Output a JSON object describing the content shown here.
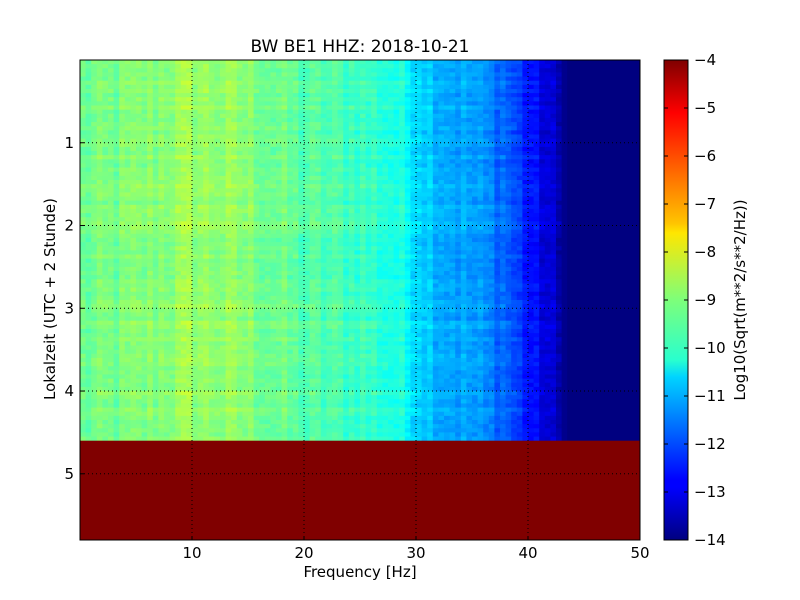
{
  "chart_data": {
    "type": "heatmap",
    "title": "BW BE1 HHZ: 2018-10-21",
    "xlabel": "Frequency [Hz]",
    "ylabel": "Lokalzeit (UTC + 2 Stunde)",
    "xlim": [
      0,
      50
    ],
    "ylim": [
      5.8,
      0
    ],
    "x_ticks": [
      10,
      20,
      30,
      40,
      50
    ],
    "y_ticks": [
      1,
      2,
      3,
      4,
      5
    ],
    "grid": true,
    "colormap": "jet",
    "colorbar": {
      "label": "Log10(Sqrt(m**2/s**2/Hz))",
      "range": [
        -14,
        -4
      ],
      "ticks": [
        -4,
        -5,
        -6,
        -7,
        -8,
        -9,
        -10,
        -11,
        -12,
        -13,
        -14
      ]
    },
    "data_end_hour": 4.6,
    "no_data_value": -4,
    "frequency_profile": {
      "frequency_hz": [
        0,
        5,
        10,
        15,
        20,
        25,
        28,
        30,
        32,
        35,
        38,
        40,
        42,
        43.5,
        50
      ],
      "log10_amplitude": [
        -9.2,
        -9.0,
        -8.7,
        -8.9,
        -9.4,
        -9.6,
        -9.9,
        -10.4,
        -10.9,
        -11.2,
        -11.7,
        -12.5,
        -13.2,
        -14,
        -14
      ]
    }
  }
}
